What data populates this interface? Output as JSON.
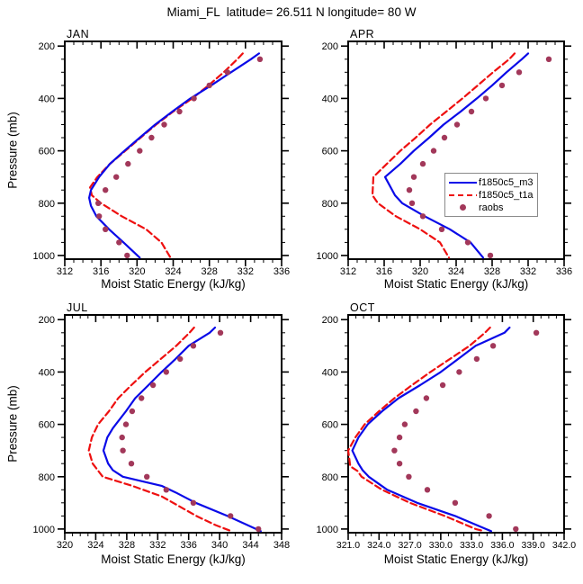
{
  "title": "Miami_FL  latitude= 26.511 N longitude= 80 W",
  "colors": {
    "background": "#ffffff",
    "axis": "#000000",
    "model_m3": "#0a0ae8",
    "model_t1a": "#ee1010",
    "raobs": "#a2385a",
    "legend_border": "#8a8a8a"
  },
  "legend": {
    "entries": [
      {
        "label": "f1850c5_m3",
        "style": "line-solid",
        "color_key": "model_m3"
      },
      {
        "label": "f1850c5_t1a",
        "style": "line-dashed",
        "color_key": "model_t1a"
      },
      {
        "label": "raobs",
        "style": "marker-dot",
        "color_key": "raobs"
      }
    ]
  },
  "axes": {
    "xlabel": "Moist Static Energy (kJ/kg)",
    "ylabel": "Pressure (mb)",
    "pressure_ticks": [
      "200",
      "400",
      "600",
      "800",
      "1000"
    ],
    "pressure_minor_step": 50,
    "pressure_range": [
      182,
      1014
    ]
  },
  "chart_data": [
    {
      "type": "line",
      "month": "JAN",
      "xlim": [
        312,
        336
      ],
      "xticks": [
        "312",
        "316",
        "320",
        "324",
        "328",
        "332",
        "336"
      ],
      "xminor_step": 1,
      "series": {
        "f1850c5_m3": [
          [
            228,
            333.5
          ],
          [
            250,
            332.6
          ],
          [
            300,
            330.4
          ],
          [
            350,
            328.2
          ],
          [
            400,
            325.9
          ],
          [
            450,
            323.9
          ],
          [
            500,
            322.0
          ],
          [
            550,
            320.3
          ],
          [
            600,
            318.6
          ],
          [
            650,
            317.0
          ],
          [
            700,
            315.8
          ],
          [
            750,
            314.9
          ],
          [
            780,
            314.7
          ],
          [
            810,
            314.9
          ],
          [
            850,
            315.5
          ],
          [
            900,
            316.9
          ],
          [
            950,
            318.5
          ],
          [
            1008,
            320.3
          ]
        ],
        "f1850c5_t1a": [
          [
            228,
            331.7
          ],
          [
            250,
            331.1
          ],
          [
            300,
            329.6
          ],
          [
            350,
            327.9
          ],
          [
            400,
            326.1
          ],
          [
            450,
            324.0
          ],
          [
            500,
            322.1
          ],
          [
            550,
            320.4
          ],
          [
            600,
            318.7
          ],
          [
            650,
            317.0
          ],
          [
            700,
            315.6
          ],
          [
            740,
            314.8
          ],
          [
            770,
            315.0
          ],
          [
            800,
            316.0
          ],
          [
            850,
            318.3
          ],
          [
            900,
            321.0
          ],
          [
            950,
            322.7
          ],
          [
            1008,
            323.7
          ]
        ],
        "raobs": [
          [
            250,
            333.6
          ],
          [
            300,
            330.0
          ],
          [
            350,
            328.0
          ],
          [
            400,
            326.3
          ],
          [
            450,
            324.7
          ],
          [
            500,
            323.0
          ],
          [
            550,
            321.6
          ],
          [
            600,
            320.3
          ],
          [
            650,
            319.0
          ],
          [
            700,
            317.7
          ],
          [
            750,
            316.5
          ],
          [
            800,
            315.7
          ],
          [
            850,
            315.8
          ],
          [
            900,
            316.5
          ],
          [
            950,
            318.0
          ],
          [
            1000,
            318.9
          ]
        ]
      }
    },
    {
      "type": "line",
      "month": "APR",
      "xlim": [
        312,
        336
      ],
      "xticks": [
        "312",
        "316",
        "320",
        "324",
        "328",
        "332",
        "336"
      ],
      "xminor_step": 1,
      "series": {
        "f1850c5_m3": [
          [
            228,
            332.0
          ],
          [
            250,
            331.3
          ],
          [
            300,
            329.6
          ],
          [
            350,
            328.0
          ],
          [
            400,
            326.3
          ],
          [
            450,
            324.5
          ],
          [
            500,
            322.6
          ],
          [
            550,
            321.0
          ],
          [
            600,
            319.3
          ],
          [
            650,
            317.8
          ],
          [
            700,
            316.1
          ],
          [
            770,
            317.2
          ],
          [
            800,
            318.0
          ],
          [
            850,
            320.5
          ],
          [
            900,
            323.3
          ],
          [
            950,
            325.6
          ],
          [
            1008,
            327.0
          ]
        ],
        "f1850c5_t1a": [
          [
            228,
            330.5
          ],
          [
            250,
            329.9
          ],
          [
            300,
            328.1
          ],
          [
            350,
            326.4
          ],
          [
            400,
            324.7
          ],
          [
            450,
            322.9
          ],
          [
            500,
            321.1
          ],
          [
            550,
            319.5
          ],
          [
            600,
            317.8
          ],
          [
            650,
            316.3
          ],
          [
            700,
            314.8
          ],
          [
            770,
            314.7
          ],
          [
            800,
            315.3
          ],
          [
            850,
            317.3
          ],
          [
            900,
            320.0
          ],
          [
            950,
            322.2
          ],
          [
            1008,
            323.2
          ]
        ],
        "raobs": [
          [
            250,
            334.3
          ],
          [
            300,
            331.0
          ],
          [
            350,
            329.1
          ],
          [
            400,
            327.3
          ],
          [
            450,
            325.7
          ],
          [
            500,
            324.1
          ],
          [
            550,
            322.7
          ],
          [
            600,
            321.5
          ],
          [
            650,
            320.3
          ],
          [
            700,
            319.3
          ],
          [
            750,
            318.8
          ],
          [
            800,
            319.1
          ],
          [
            850,
            320.3
          ],
          [
            900,
            322.4
          ],
          [
            950,
            325.3
          ],
          [
            1000,
            327.8
          ]
        ]
      }
    },
    {
      "type": "line",
      "month": "JUL",
      "xlim": [
        320,
        348
      ],
      "xticks": [
        "320",
        "324",
        "328",
        "332",
        "336",
        "340",
        "344",
        "348"
      ],
      "xminor_step": 1,
      "series": {
        "f1850c5_m3": [
          [
            230,
            339.4
          ],
          [
            250,
            338.7
          ],
          [
            300,
            336.0
          ],
          [
            350,
            334.3
          ],
          [
            400,
            332.5
          ],
          [
            450,
            330.8
          ],
          [
            500,
            329.1
          ],
          [
            550,
            327.9
          ],
          [
            615,
            326.2
          ],
          [
            650,
            325.5
          ],
          [
            700,
            325.0
          ],
          [
            750,
            325.6
          ],
          [
            775,
            326.2
          ],
          [
            800,
            327.5
          ],
          [
            835,
            332.5
          ],
          [
            860,
            334.3
          ],
          [
            900,
            336.9
          ],
          [
            950,
            341.0
          ],
          [
            1008,
            345.3
          ]
        ],
        "f1850c5_t1a": [
          [
            230,
            336.7
          ],
          [
            250,
            336.1
          ],
          [
            300,
            334.4
          ],
          [
            350,
            332.4
          ],
          [
            400,
            330.4
          ],
          [
            450,
            328.6
          ],
          [
            500,
            326.9
          ],
          [
            550,
            325.7
          ],
          [
            600,
            324.3
          ],
          [
            650,
            323.5
          ],
          [
            700,
            323.1
          ],
          [
            750,
            323.6
          ],
          [
            800,
            324.9
          ],
          [
            835,
            328.7
          ],
          [
            875,
            332.5
          ],
          [
            915,
            334.9
          ],
          [
            953,
            337.2
          ],
          [
            985,
            339.5
          ],
          [
            1008,
            341.5
          ]
        ],
        "raobs": [
          [
            250,
            340.1
          ],
          [
            300,
            336.6
          ],
          [
            350,
            334.9
          ],
          [
            400,
            333.1
          ],
          [
            450,
            331.4
          ],
          [
            500,
            329.9
          ],
          [
            550,
            328.7
          ],
          [
            600,
            327.9
          ],
          [
            650,
            327.4
          ],
          [
            700,
            327.5
          ],
          [
            750,
            328.6
          ],
          [
            800,
            330.6
          ],
          [
            850,
            333.1
          ],
          [
            900,
            336.6
          ],
          [
            950,
            341.4
          ],
          [
            1000,
            345.0
          ]
        ]
      }
    },
    {
      "type": "line",
      "month": "OCT",
      "xlim": [
        321,
        342
      ],
      "xticks": [
        "321.0",
        "324.0",
        "327.0",
        "330.0",
        "333.0",
        "336.0",
        "339.0",
        "342.0"
      ],
      "xminor_step": 0.75,
      "series": {
        "f1850c5_m3": [
          [
            230,
            336.7
          ],
          [
            250,
            336.2
          ],
          [
            300,
            333.4
          ],
          [
            350,
            331.7
          ],
          [
            400,
            330.0
          ],
          [
            450,
            328.0
          ],
          [
            500,
            325.9
          ],
          [
            550,
            324.3
          ],
          [
            600,
            322.9
          ],
          [
            650,
            322.0
          ],
          [
            700,
            321.4
          ],
          [
            750,
            322.0
          ],
          [
            775,
            322.4
          ],
          [
            800,
            323.0
          ],
          [
            850,
            324.8
          ],
          [
            900,
            327.7
          ],
          [
            950,
            331.4
          ],
          [
            1000,
            334.4
          ],
          [
            1008,
            334.9
          ]
        ],
        "f1850c5_t1a": [
          [
            230,
            334.8
          ],
          [
            250,
            334.3
          ],
          [
            300,
            332.8
          ],
          [
            350,
            330.9
          ],
          [
            400,
            329.0
          ],
          [
            450,
            327.2
          ],
          [
            500,
            325.5
          ],
          [
            550,
            324.0
          ],
          [
            600,
            322.6
          ],
          [
            650,
            321.7
          ],
          [
            700,
            321.0
          ],
          [
            760,
            321.2
          ],
          [
            778,
            321.9
          ],
          [
            800,
            322.3
          ],
          [
            850,
            324.3
          ],
          [
            900,
            327.0
          ],
          [
            950,
            330.4
          ],
          [
            1000,
            333.4
          ],
          [
            1006,
            334.0
          ]
        ],
        "raobs": [
          [
            250,
            339.3
          ],
          [
            300,
            335.1
          ],
          [
            350,
            333.5
          ],
          [
            400,
            331.8
          ],
          [
            450,
            330.2
          ],
          [
            500,
            328.6
          ],
          [
            550,
            327.6
          ],
          [
            600,
            326.5
          ],
          [
            650,
            326.0
          ],
          [
            700,
            325.5
          ],
          [
            750,
            326.0
          ],
          [
            800,
            326.9
          ],
          [
            850,
            328.7
          ],
          [
            900,
            331.4
          ],
          [
            950,
            334.7
          ],
          [
            1000,
            337.3
          ]
        ]
      }
    }
  ]
}
